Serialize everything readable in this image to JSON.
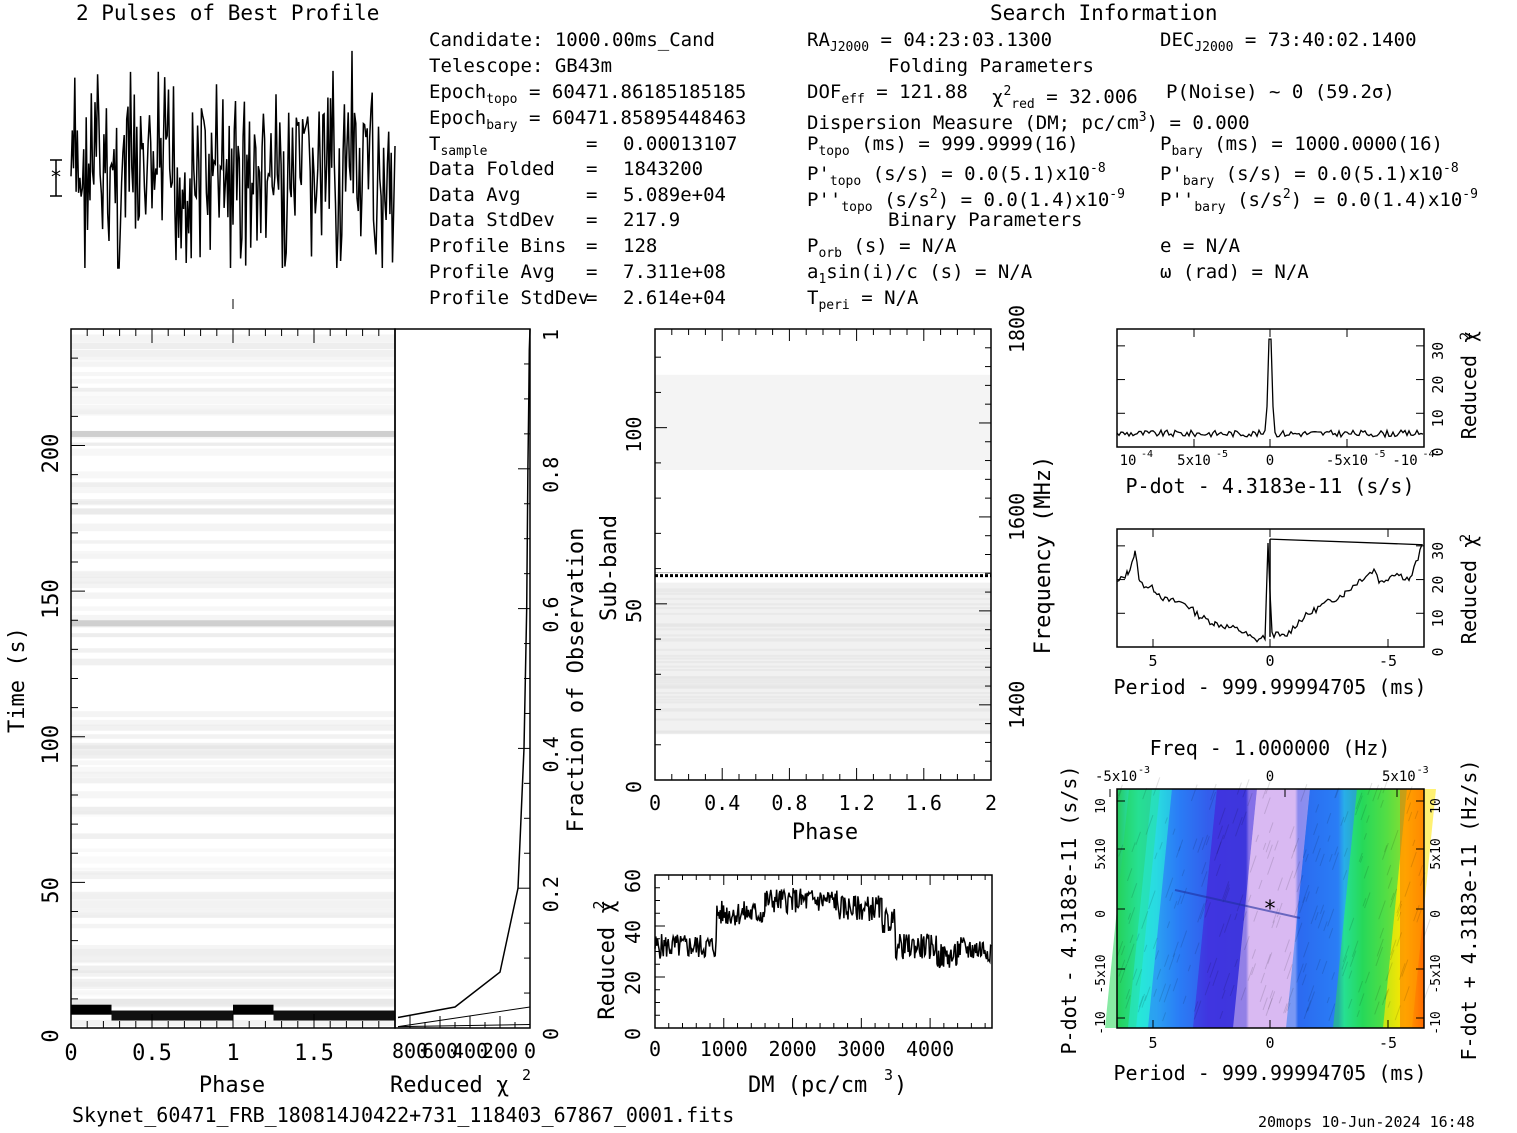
{
  "title_profile": "2 Pulses of Best Profile",
  "title_search": "Search Information",
  "heading_folding": "Folding Parameters",
  "heading_binary": "Binary Parameters",
  "candidate_info": {
    "candidate": "Candidate:  1000.00ms_Cand",
    "telescope": "Telescope:  GB43m",
    "epoch_topo": "60471.86185185185",
    "epoch_bary": "60471.85895448463",
    "t_sample": "0.00013107",
    "data_folded": "1843200",
    "data_avg": "5.089e+04",
    "data_stddev": "217.9",
    "profile_bins": "128",
    "profile_avg": "7.311e+08",
    "profile_stddev": "2.614e+04"
  },
  "labels": {
    "epoch_topo": "Epoch",
    "epoch_bary": "Epoch",
    "t_sample": "T",
    "data_folded": "Data Folded",
    "data_avg": "Data Avg",
    "data_stddev": "Data StdDev",
    "profile_bins": "Profile Bins",
    "profile_avg": "Profile Avg",
    "profile_stddev": "Profile StdDev",
    "topo": "topo",
    "bary": "bary",
    "sample": "sample",
    "eq": "="
  },
  "search_info": {
    "ra": "= 04:23:03.1300",
    "dec": "= 73:40:02.1400",
    "dof": "= 121.88",
    "chi2_red": "= 32.006",
    "p_noise": "P(Noise) ~ 0   (59.2σ)",
    "dm": "Dispersion Measure (DM; pc/cm",
    "dm_value": ") = 0.000",
    "p_topo": "(ms) =  999.9999(16)",
    "p_bary": "(ms) =  1000.0000(16)",
    "pd_topo": "(s/s) = 0.0(5.1)x10",
    "pd_bary": "(s/s) = 0.0(5.1)x10",
    "pdd_topo": "(s/s",
    "pdd_topo2": ") = 0.0(1.4)x10",
    "pdd_bary": "(s/s",
    "pdd_bary2": ") = 0.0(1.4)x10",
    "exp8": "-8",
    "exp9": "-9",
    "p_orb": "(s) = N/A",
    "e": "e = N/A",
    "a1": "sin(i)/c (s) = N/A",
    "omega": "ω (rad) = N/A",
    "t_peri": "= N/A"
  },
  "footer": {
    "filename": "Skynet_60471_FRB_180814J0422+731_118403_67867_0001.fits",
    "stamp": "20mops 10-Jun-2024 16:48"
  },
  "chart_data": [
    {
      "type": "line",
      "name": "pulse-profile",
      "title": "2 Pulses of Best Profile",
      "xlabel": "",
      "ylabel": "",
      "x": [
        0,
        2
      ],
      "note_values": "noise-like profile across 2 rotations (256 bins)"
    },
    {
      "type": "heatmap",
      "name": "time-phase",
      "xlabel": "Phase",
      "ylabel": "Time (s)",
      "xlim": [
        0,
        2
      ],
      "ylim": [
        0,
        240
      ],
      "x_ticks": [
        "0",
        "0.5",
        "1",
        "1.5"
      ],
      "y_ticks": [
        "0",
        "50",
        "100",
        "150",
        "200"
      ],
      "dark_rows_time": [
        5,
        205,
        140
      ]
    },
    {
      "type": "line",
      "name": "reduced-chi2-vs-fraction",
      "xlabel": "Reduced χ",
      "ylabel": "Fraction of Observation",
      "x_ticks": [
        "800",
        "600",
        "400",
        "200",
        "0"
      ],
      "y_ticks": [
        "0",
        "0.2",
        "0.4",
        "0.6",
        "0.8",
        "1"
      ],
      "xlim": [
        900,
        0
      ],
      "ylim": [
        0,
        1
      ]
    },
    {
      "type": "heatmap",
      "name": "subband-phase",
      "xlabel": "Phase",
      "ylabel": "Sub-band",
      "y2label": "Frequency (MHz)",
      "xlim": [
        0,
        2
      ],
      "ylim": [
        0,
        128
      ],
      "x_ticks": [
        "0",
        "0.4",
        "0.8",
        "1.2",
        "1.6",
        "2"
      ],
      "y_ticks": [
        "0",
        "50",
        "100"
      ],
      "y2_ticks": [
        "1400",
        "1600",
        "1800"
      ],
      "highlight_subband": 58
    },
    {
      "type": "line",
      "name": "dm-curve",
      "xlabel": "DM (pc/cm",
      "xlabel_sup": "3",
      "xlabel_close": ")",
      "ylabel": "Reduced χ",
      "xlim": [
        0,
        4900
      ],
      "ylim": [
        0,
        60
      ],
      "x_ticks": [
        "0",
        "1000",
        "2000",
        "3000",
        "4000"
      ],
      "y_ticks": [
        "0",
        "20",
        "40",
        "60"
      ],
      "steps": [
        {
          "x0": 0,
          "x1": 900,
          "y": 32
        },
        {
          "x0": 900,
          "x1": 1600,
          "y": 45
        },
        {
          "x0": 1600,
          "x1": 2650,
          "y": 50
        },
        {
          "x0": 2650,
          "x1": 3300,
          "y": 47
        },
        {
          "x0": 3300,
          "x1": 3500,
          "y": 42
        },
        {
          "x0": 3500,
          "x1": 4100,
          "y": 32
        },
        {
          "x0": 4100,
          "x1": 4400,
          "y": 28
        },
        {
          "x0": 4400,
          "x1": 4900,
          "y": 31
        }
      ]
    },
    {
      "type": "line",
      "name": "pdot-curve",
      "xlabel": "P-dot - 4.3183e-11 (s/s)",
      "ylabel": "Reduced χ",
      "ylim": [
        0,
        35
      ],
      "x_ticks": [
        "10",
        "5x10",
        "0",
        "-5x10",
        "-10"
      ],
      "y_ticks": [
        "0",
        "10",
        "20",
        "30"
      ],
      "peak": 32
    },
    {
      "type": "line",
      "name": "period-curve",
      "xlabel": "Period - 999.99994705 (ms)",
      "ylabel": "Reduced χ",
      "ylim": [
        0,
        35
      ],
      "x_ticks": [
        "5",
        "0",
        "-5"
      ],
      "y_ticks": [
        "0",
        "10",
        "20",
        "30"
      ],
      "peak": 32
    },
    {
      "type": "heatmap",
      "name": "p-pdot-plane",
      "title": "Freq - 1.000000 (Hz)",
      "xlabel": "Period - 999.99994705 (ms)",
      "ylabel": "P-dot - 4.3183e-11 (s/s)",
      "y2label": "F-dot + 4.3183e-11 (Hz/s)",
      "x_ticks": [
        "5",
        "0",
        "-5"
      ],
      "top_ticks": [
        "-5x10",
        "0",
        "5x10"
      ],
      "y_ticks": [
        "10",
        "5x10",
        "0",
        "-5x10",
        "-10"
      ],
      "y2_ticks": [
        "-10",
        "-5x10",
        "0",
        "5x10",
        "10"
      ],
      "colors": [
        "#ff6a00",
        "#ffe600",
        "#27d85a",
        "#27e8d8",
        "#2a7ef5",
        "#4035e0",
        "#d9b9f2"
      ]
    }
  ]
}
